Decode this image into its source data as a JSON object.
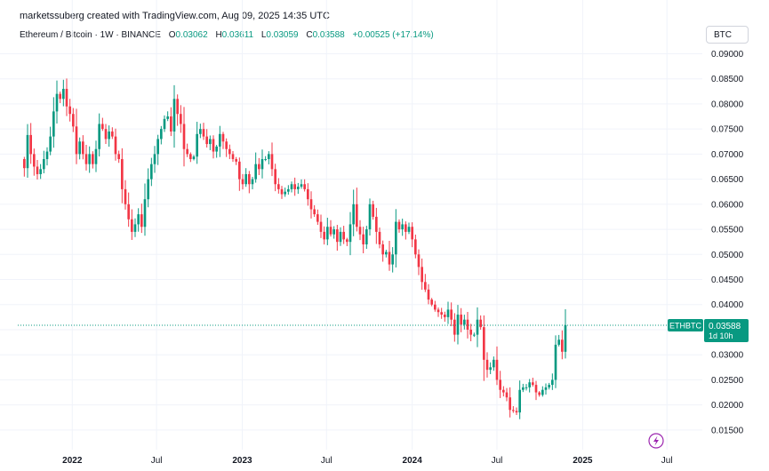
{
  "credit": "marketssuberg created with TradingView.com, Aug 09, 2025 14:35 UTC",
  "legend": {
    "symbol": "Ethereum / Bitcoin · 1W · BINANCE",
    "o_label": "O",
    "o_value": "0.03062",
    "h_label": "H",
    "h_value": "0.03611",
    "l_label": "L",
    "l_value": "0.03059",
    "c_label": "C",
    "c_value": "0.03588",
    "change": "+0.00525 (+17.14%)"
  },
  "currency_button": "BTC",
  "price_tag": {
    "symbol": "ETHBTC",
    "price": "0.03588",
    "countdown": "1d 10h"
  },
  "colors": {
    "up": "#089981",
    "down": "#f23645",
    "grid": "#f0f3fa",
    "last_line": "#089981",
    "accent_icon": "#9c27b0"
  },
  "icons": {
    "bottom": "lightning-icon"
  },
  "chart_data": {
    "type": "candlestick",
    "series_name": "ETHBTC",
    "interval": "1W",
    "x_tick_labels": [
      "2022",
      "Jul",
      "2023",
      "Jul",
      "2024",
      "Jul",
      "2025",
      "Jul"
    ],
    "x_ticks": [
      "2022-01-01",
      "2022-07-01",
      "2023-01-01",
      "2023-07-01",
      "2024-01-01",
      "2024-07-01",
      "2025-01-01",
      "2025-07-01"
    ],
    "y_tick_labels": [
      "0.01500",
      "0.02000",
      "0.02500",
      "0.03000",
      "0.03500",
      "0.04000",
      "0.04500",
      "0.05000",
      "0.05500",
      "0.06000",
      "0.06500",
      "0.07000",
      "0.07500",
      "0.08000",
      "0.08500",
      "0.09000"
    ],
    "ylim": [
      0.0125,
      0.0915
    ],
    "xlim": [
      "2021-09-06",
      "2025-09-15"
    ],
    "grid": true,
    "last_price": 0.03588,
    "weekly_close": {
      "start": "2021-09-13",
      "values": [
        0.069,
        0.0672,
        0.0738,
        0.07,
        0.0675,
        0.066,
        0.067,
        0.069,
        0.0705,
        0.0735,
        0.0785,
        0.082,
        0.081,
        0.083,
        0.0795,
        0.078,
        0.0755,
        0.07,
        0.0725,
        0.07,
        0.068,
        0.07,
        0.068,
        0.071,
        0.076,
        0.075,
        0.073,
        0.0745,
        0.0735,
        0.07,
        0.069,
        0.063,
        0.06,
        0.057,
        0.0545,
        0.056,
        0.058,
        0.0555,
        0.061,
        0.065,
        0.068,
        0.07,
        0.073,
        0.075,
        0.077,
        0.0775,
        0.0745,
        0.081,
        0.078,
        0.076,
        0.071,
        0.07,
        0.069,
        0.0695,
        0.074,
        0.075,
        0.0735,
        0.072,
        0.073,
        0.0705,
        0.0715,
        0.074,
        0.0725,
        0.071,
        0.07,
        0.069,
        0.0685,
        0.065,
        0.064,
        0.066,
        0.064,
        0.065,
        0.068,
        0.067,
        0.069,
        0.069,
        0.07,
        0.067,
        0.064,
        0.063,
        0.062,
        0.0625,
        0.063,
        0.064,
        0.063,
        0.0635,
        0.064,
        0.063,
        0.061,
        0.059,
        0.058,
        0.0565,
        0.0545,
        0.053,
        0.0555,
        0.054,
        0.055,
        0.0525,
        0.0545,
        0.053,
        0.0525,
        0.056,
        0.06,
        0.0555,
        0.054,
        0.052,
        0.055,
        0.06,
        0.0575,
        0.0545,
        0.052,
        0.05,
        0.0505,
        0.048,
        0.05,
        0.0565,
        0.055,
        0.056,
        0.0545,
        0.0555,
        0.053,
        0.05,
        0.0475,
        0.0445,
        0.043,
        0.041,
        0.04,
        0.039,
        0.0385,
        0.038,
        0.0375,
        0.039,
        0.037,
        0.034,
        0.038,
        0.036,
        0.037,
        0.035,
        0.034,
        0.034,
        0.037,
        0.0355,
        0.029,
        0.027,
        0.0275,
        0.029,
        0.025,
        0.023,
        0.0225,
        0.0215,
        0.019,
        0.0188,
        0.0185,
        0.023,
        0.0235,
        0.0235,
        0.0245,
        0.024,
        0.0225,
        0.022,
        0.023,
        0.0235,
        0.024,
        0.025,
        0.032,
        0.033,
        0.0306,
        0.0359
      ]
    }
  }
}
